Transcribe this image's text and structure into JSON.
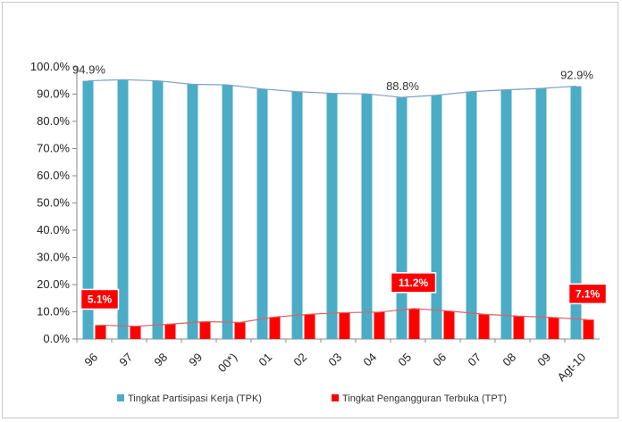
{
  "chart_data": {
    "type": "bar",
    "title": "",
    "xlabel": "",
    "ylabel": "",
    "ylim": [
      0,
      100
    ],
    "yticks": [
      "0.0%",
      "10.0%",
      "20.0%",
      "30.0%",
      "40.0%",
      "50.0%",
      "60.0%",
      "70.0%",
      "80.0%",
      "90.0%",
      "100.0%"
    ],
    "categories": [
      "96",
      "97",
      "98",
      "99",
      "00*)",
      "01",
      "02",
      "03",
      "04",
      "05",
      "06",
      "07",
      "08",
      "09",
      "Agt-10"
    ],
    "series": [
      {
        "name": "Tingkat Partisipasi Kerja (TPK)",
        "color": "#4bacc6",
        "values": [
          94.9,
          95.3,
          94.9,
          93.6,
          93.4,
          91.9,
          90.9,
          90.3,
          90.1,
          88.8,
          89.6,
          90.9,
          91.6,
          92.1,
          92.9
        ]
      },
      {
        "name": "Tingkat Pengangguran Terbuka (TPT)",
        "color": "#ff0000",
        "values": [
          5.1,
          4.7,
          5.5,
          6.4,
          6.1,
          8.1,
          9.1,
          9.7,
          9.9,
          11.2,
          10.3,
          9.1,
          8.4,
          7.9,
          7.1
        ]
      }
    ],
    "annotations": {
      "tpk": [
        {
          "index": 0,
          "text": "94.9%"
        },
        {
          "index": 9,
          "text": "88.8%"
        },
        {
          "index": 14,
          "text": "92.9%"
        }
      ],
      "tpt": [
        {
          "index": 0,
          "text": "5.1%"
        },
        {
          "index": 9,
          "text": "11.2%"
        },
        {
          "index": 14,
          "text": "7.1%"
        }
      ]
    },
    "legend": {
      "position": "bottom"
    },
    "trend_line_colors": {
      "tpk": "#7f9fc6",
      "tpt": "#e06060"
    }
  }
}
